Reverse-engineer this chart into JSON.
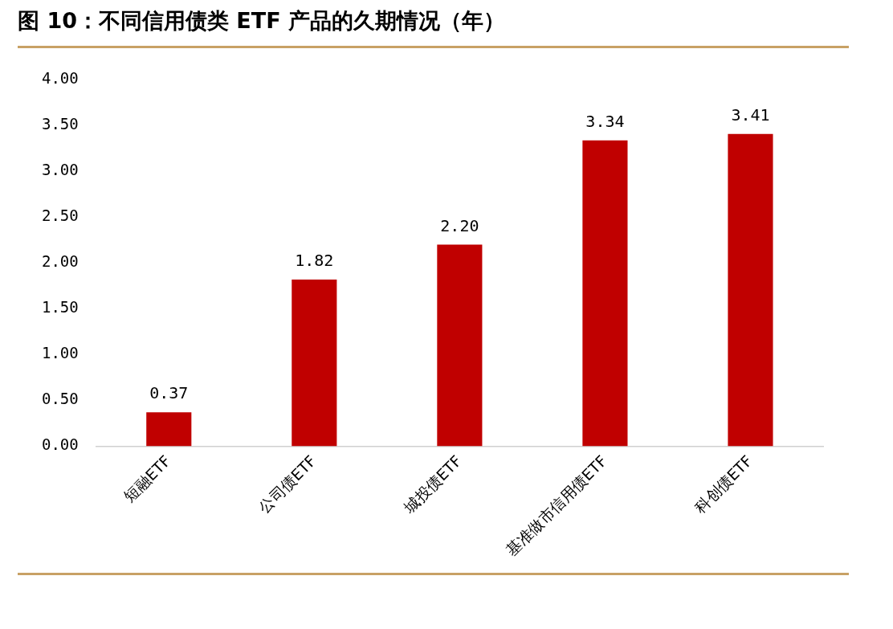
{
  "chart_data": {
    "type": "bar",
    "title": "图 10：不同信用债类 ETF 产品的久期情况（年）",
    "categories": [
      "短融ETF",
      "公司债ETF",
      "城投债ETF",
      "基准做市信用债ETF",
      "科创债ETF"
    ],
    "values": [
      0.37,
      1.82,
      2.2,
      3.34,
      3.41
    ],
    "value_labels": [
      "0.37",
      "1.82",
      "2.20",
      "3.34",
      "3.41"
    ],
    "color": "#c00000",
    "ylim": [
      0,
      4
    ],
    "yticks": [
      {
        "value": 0,
        "label": "0.00"
      },
      {
        "value": 0.5,
        "label": "0.50"
      },
      {
        "value": 1,
        "label": "1.00"
      },
      {
        "value": 1.5,
        "label": "1.50"
      },
      {
        "value": 2,
        "label": "2.00"
      },
      {
        "value": 2.5,
        "label": "2.50"
      },
      {
        "value": 3,
        "label": "3.00"
      },
      {
        "value": 3.5,
        "label": "3.50"
      },
      {
        "value": 4,
        "label": "4.00"
      }
    ],
    "grid": false,
    "legend": false
  }
}
